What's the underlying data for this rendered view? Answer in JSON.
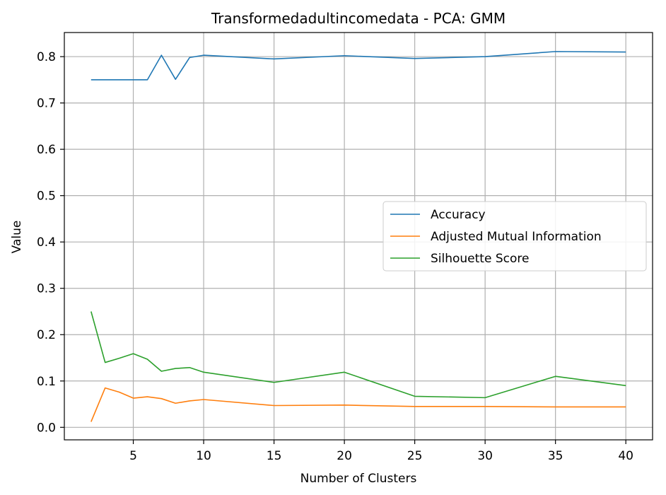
{
  "chart_data": {
    "type": "line",
    "title": "Transformedadultincomedata - PCA: GMM",
    "xlabel": "Number of Clusters",
    "ylabel": "Value",
    "xlim": [
      0.1,
      41.9
    ],
    "ylim": [
      -0.027,
      0.852
    ],
    "xticks": [
      5,
      10,
      15,
      20,
      25,
      30,
      35,
      40
    ],
    "yticks": [
      0.0,
      0.1,
      0.2,
      0.3,
      0.4,
      0.5,
      0.6,
      0.7,
      0.8
    ],
    "grid": true,
    "legend_position": "center-right",
    "x": [
      2,
      3,
      4,
      5,
      6,
      7,
      8,
      9,
      10,
      15,
      20,
      25,
      30,
      35,
      40
    ],
    "series": [
      {
        "name": "Accuracy",
        "color": "#1f77b4",
        "values": [
          0.75,
          0.75,
          0.75,
          0.75,
          0.75,
          0.803,
          0.751,
          0.798,
          0.803,
          0.795,
          0.802,
          0.796,
          0.8,
          0.811,
          0.81
        ]
      },
      {
        "name": "Adjusted Mutual Information",
        "color": "#ff7f0e",
        "values": [
          0.012,
          0.085,
          0.076,
          0.063,
          0.066,
          0.062,
          0.052,
          0.057,
          0.06,
          0.047,
          0.048,
          0.045,
          0.045,
          0.044,
          0.044
        ]
      },
      {
        "name": "Silhouette Score",
        "color": "#2ca02c",
        "values": [
          0.25,
          0.14,
          0.149,
          0.159,
          0.147,
          0.121,
          0.127,
          0.129,
          0.119,
          0.097,
          0.119,
          0.067,
          0.064,
          0.11,
          0.09
        ]
      }
    ]
  }
}
